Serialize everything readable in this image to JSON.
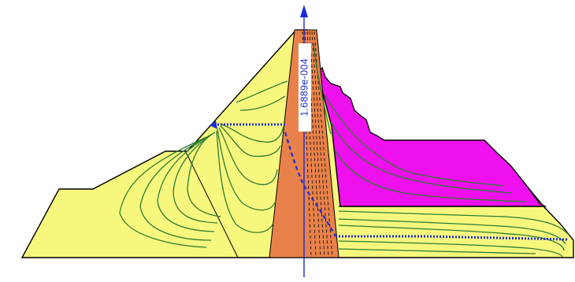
{
  "figure": {
    "flux_value_label": "1.6889e-004"
  },
  "colors": {
    "background": "#ffffff",
    "embankment_fill": "#f7f77e",
    "core_fill": "#e8824a",
    "filter_fill": "#ee10ee",
    "flow_lines": "#2e7d32",
    "phreatic_line": "#1c2bd6",
    "section_arrow": "#1c2bd6",
    "outline": "#000000",
    "label_background": "#ffffff"
  }
}
